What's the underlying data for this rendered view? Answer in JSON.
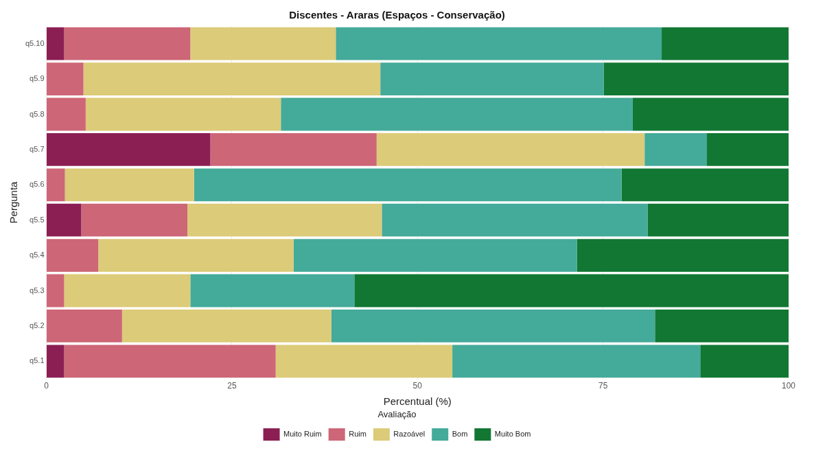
{
  "chart_data": {
    "type": "bar",
    "title": "Discentes - Araras (Espaços - Conservação)",
    "xlabel": "Percentual (%)",
    "ylabel": "Pergunta",
    "legend_title": "Avaliação",
    "orientation": "horizontal",
    "stacked": true,
    "grid": true,
    "legend": "bottom",
    "xlim": [
      0,
      100
    ],
    "xticks": [
      0,
      25,
      50,
      75,
      100
    ],
    "categories": [
      "q5.10",
      "q5.9",
      "q5.8",
      "q5.7",
      "q5.6",
      "q5.5",
      "q5.4",
      "q5.3",
      "q5.2",
      "q5.1"
    ],
    "series": [
      {
        "name": "Muito Ruim",
        "color": "#8b1f53",
        "values": [
          2.4,
          0,
          0,
          22.1,
          0,
          4.7,
          0,
          0,
          0,
          2.4
        ]
      },
      {
        "name": "Ruim",
        "color": "#cd6677",
        "values": [
          17.0,
          5.0,
          5.3,
          22.4,
          2.5,
          14.3,
          7.0,
          2.4,
          10.2,
          28.5
        ]
      },
      {
        "name": "Razoável",
        "color": "#dccb78",
        "values": [
          19.6,
          40.0,
          26.3,
          36.1,
          17.4,
          26.2,
          26.3,
          17.0,
          28.2,
          23.8
        ]
      },
      {
        "name": "Bom",
        "color": "#44aa99",
        "values": [
          43.9,
          30.1,
          47.4,
          8.4,
          57.6,
          35.8,
          38.2,
          22.1,
          43.6,
          33.4
        ]
      },
      {
        "name": "Muito Bom",
        "color": "#117733",
        "values": [
          17.1,
          24.9,
          21.0,
          11.0,
          22.5,
          19.0,
          28.5,
          58.5,
          18.0,
          11.9
        ]
      }
    ]
  }
}
